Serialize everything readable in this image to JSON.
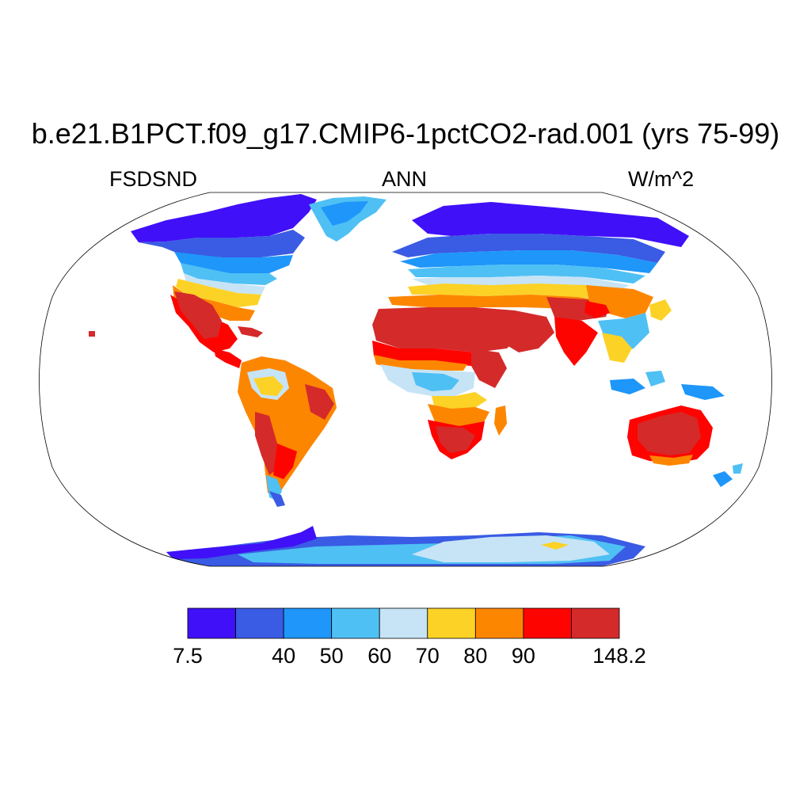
{
  "title": "b.e21.B1PCT.f09_g17.CMIP6-1pctCO2-rad.001 (yrs 75-99)",
  "variable": "FSDSND",
  "season": "ANN",
  "units": "W/m^2",
  "colorbar": {
    "colors": [
      "#4010f8",
      "#3a5be4",
      "#1e96fa",
      "#4fc0f4",
      "#c6e4f6",
      "#fdd227",
      "#fd8600",
      "#fe0400",
      "#d42a2a"
    ],
    "labels": [
      "7.5",
      "",
      "40",
      "50",
      "60",
      "70",
      "80",
      "90",
      "",
      "148.2"
    ]
  },
  "map": {
    "projection": "Robinson",
    "ocean_color": "#ffffff",
    "outline_color": "#000000"
  }
}
